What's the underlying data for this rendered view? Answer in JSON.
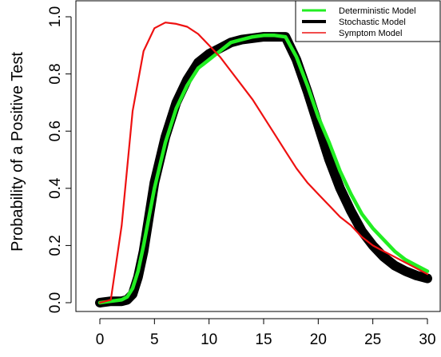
{
  "chart_data": {
    "type": "line",
    "title": "",
    "xlabel": "",
    "ylabel": "Probability of a Positive Test",
    "xlim": [
      0,
      30
    ],
    "ylim": [
      0,
      1
    ],
    "x_ticks": [
      "0",
      "5",
      "10",
      "15",
      "20",
      "25",
      "30"
    ],
    "y_ticks": [
      "0.0",
      "0.2",
      "0.4",
      "0.6",
      "0.8",
      "1.0"
    ],
    "grid": false,
    "legend_position": "top-right",
    "series": [
      {
        "name": "Deterministic Model",
        "color": "#22ee22",
        "x": [
          0,
          1,
          2,
          2.5,
          3,
          3.5,
          4,
          4.5,
          5,
          6,
          7,
          8,
          9,
          10,
          11,
          12,
          13,
          14,
          15,
          16,
          17,
          18,
          19,
          20,
          21,
          22,
          23,
          24,
          25,
          26,
          27,
          28,
          29,
          30
        ],
        "y": [
          0,
          0.005,
          0.01,
          0.02,
          0.05,
          0.11,
          0.2,
          0.3,
          0.4,
          0.56,
          0.68,
          0.76,
          0.82,
          0.85,
          0.88,
          0.91,
          0.92,
          0.93,
          0.935,
          0.935,
          0.93,
          0.86,
          0.76,
          0.65,
          0.56,
          0.46,
          0.38,
          0.31,
          0.26,
          0.22,
          0.18,
          0.15,
          0.13,
          0.11
        ]
      },
      {
        "name": "Stochastic Model",
        "color": "#000000",
        "x": [
          0,
          1,
          2,
          2.5,
          3,
          3.5,
          4,
          4.5,
          5,
          6,
          7,
          8,
          9,
          10,
          11,
          12,
          13,
          14,
          15,
          16,
          17,
          18,
          19,
          20,
          21,
          22,
          23,
          24,
          25,
          26,
          27,
          28,
          29,
          30
        ],
        "y": [
          0,
          0.005,
          0.005,
          0.01,
          0.03,
          0.09,
          0.18,
          0.3,
          0.42,
          0.58,
          0.7,
          0.78,
          0.84,
          0.87,
          0.89,
          0.91,
          0.92,
          0.925,
          0.93,
          0.93,
          0.93,
          0.85,
          0.74,
          0.62,
          0.5,
          0.4,
          0.32,
          0.25,
          0.2,
          0.16,
          0.13,
          0.11,
          0.095,
          0.085
        ]
      },
      {
        "name": "Symptom Model",
        "color": "#ee1111",
        "x": [
          0,
          1,
          2,
          3,
          4,
          5,
          6,
          7,
          8,
          9,
          10,
          11,
          12,
          13,
          14,
          15,
          16,
          17,
          18,
          19,
          20,
          21,
          22,
          23,
          24,
          25,
          26,
          27,
          28,
          29,
          30
        ],
        "y": [
          0,
          0.01,
          0.27,
          0.67,
          0.88,
          0.96,
          0.98,
          0.975,
          0.965,
          0.94,
          0.9,
          0.86,
          0.81,
          0.76,
          0.71,
          0.65,
          0.59,
          0.53,
          0.47,
          0.42,
          0.38,
          0.34,
          0.3,
          0.27,
          0.23,
          0.2,
          0.18,
          0.16,
          0.14,
          0.12,
          0.1
        ]
      }
    ]
  }
}
